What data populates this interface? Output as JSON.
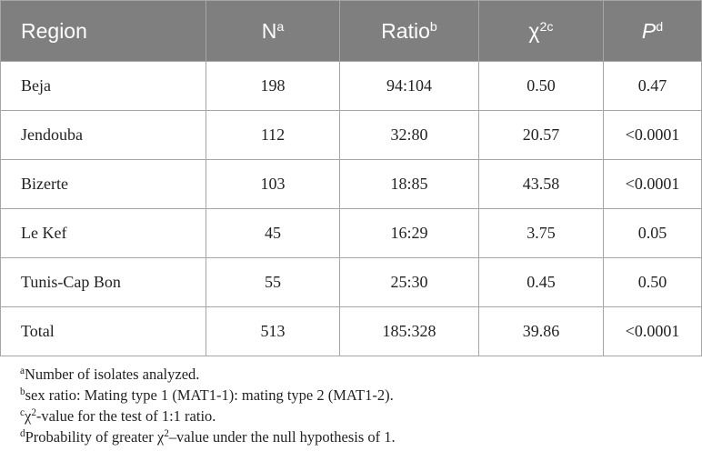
{
  "table": {
    "header": [
      {
        "text": "Region"
      },
      {
        "text": "N",
        "sup": "a"
      },
      {
        "text": "Ratio",
        "sup": "b"
      },
      {
        "text": "χ",
        "sup": "2c"
      },
      {
        "text": "P",
        "sup": "d"
      }
    ],
    "rows": [
      [
        "Beja",
        "198",
        "94:104",
        "0.50",
        "0.47"
      ],
      [
        "Jendouba",
        "112",
        "32:80",
        "20.57",
        "<0.0001"
      ],
      [
        "Bizerte",
        "103",
        "18:85",
        "43.58",
        "<0.0001"
      ],
      [
        "Le Kef",
        "45",
        "16:29",
        "3.75",
        "0.05"
      ],
      [
        "Tunis-Cap Bon",
        "55",
        "25:30",
        "0.45",
        "0.50"
      ],
      [
        "Total",
        "513",
        "185:328",
        "39.86",
        "<0.0001"
      ]
    ],
    "footnotes": [
      [
        {
          "sup": "a"
        },
        {
          "text": "Number of isolates analyzed."
        }
      ],
      [
        {
          "sup": "b"
        },
        {
          "text": "sex ratio: Mating type 1 (MAT1-1): mating type 2 (MAT1-2)."
        }
      ],
      [
        {
          "sup": "c"
        },
        {
          "text": "χ"
        },
        {
          "sup": "2"
        },
        {
          "text": "-value for the test of 1:1 ratio."
        }
      ],
      [
        {
          "sup": "d"
        },
        {
          "text": "Probability of greater χ"
        },
        {
          "sup": "2"
        },
        {
          "text": "–value under the null hypothesis of 1."
        }
      ]
    ]
  }
}
